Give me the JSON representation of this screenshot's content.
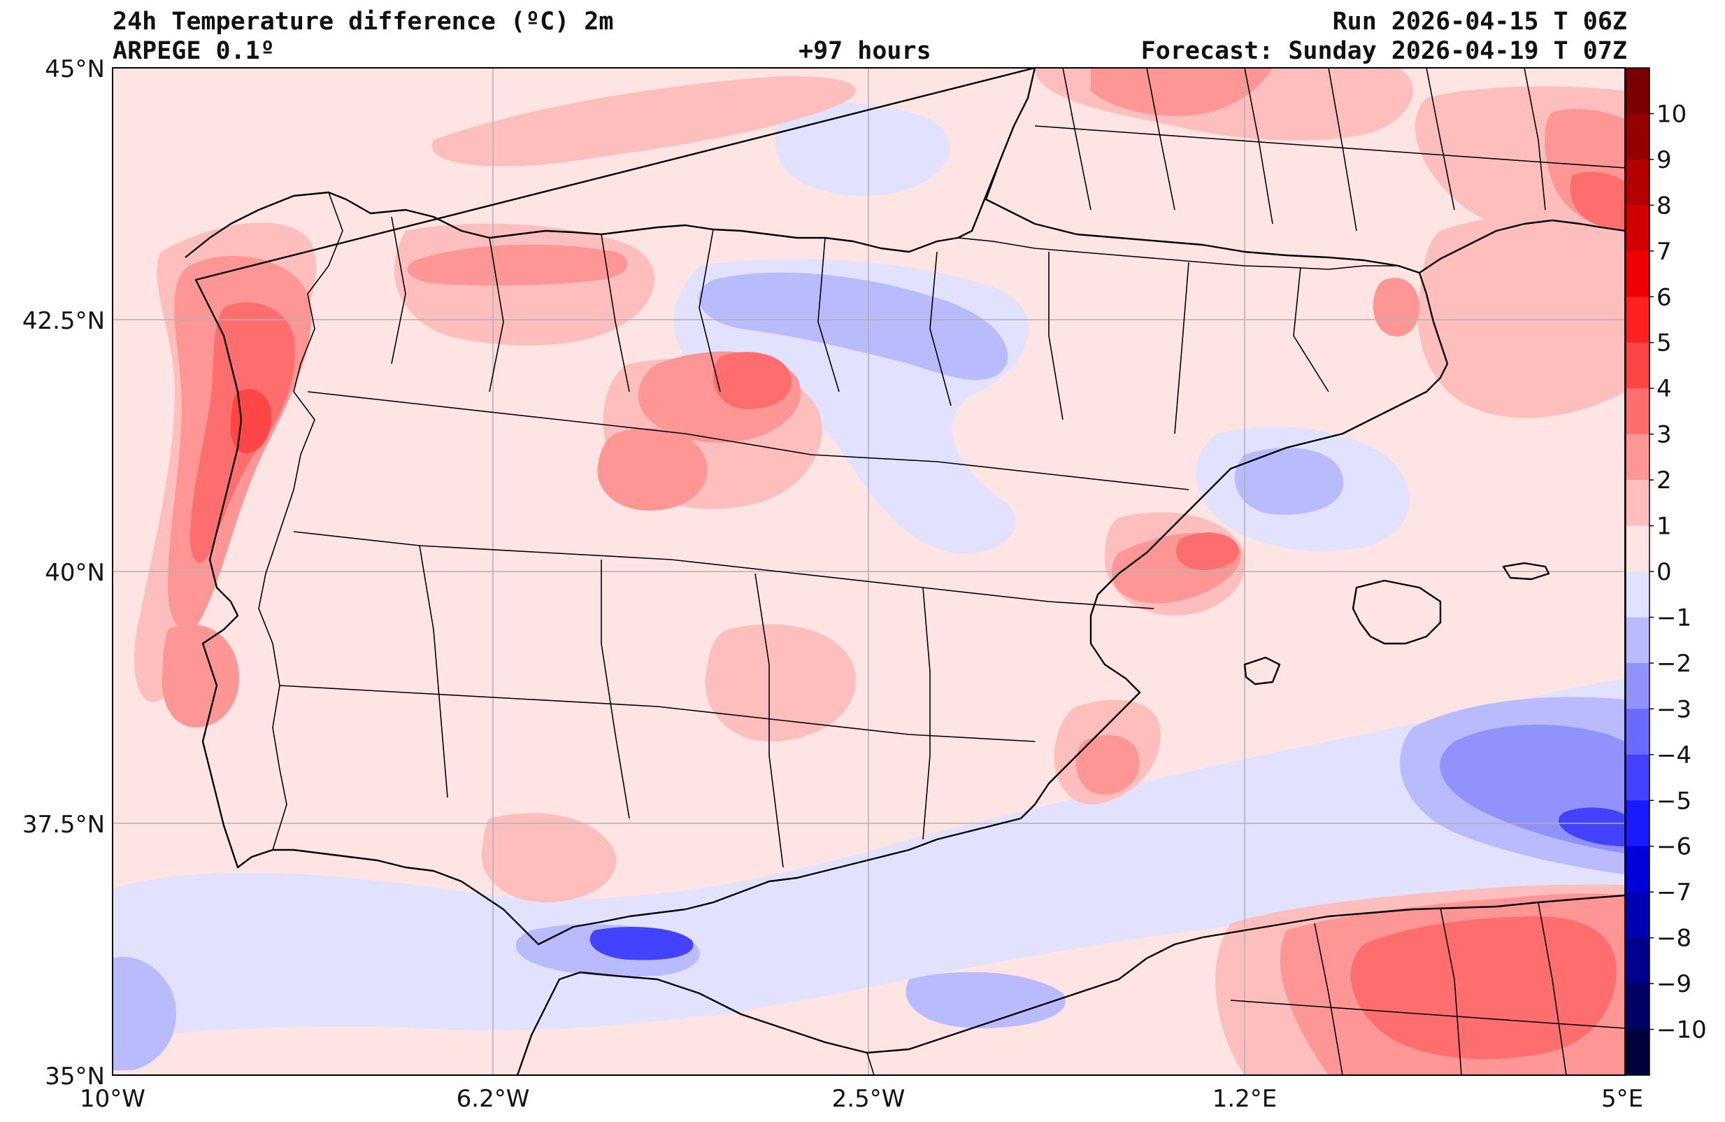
{
  "header": {
    "title": "24h Temperature difference (ºC) 2m",
    "model": "ARPEGE 0.1º",
    "lead_time": "+97 hours",
    "run": "Run 2026-04-15 T 06Z",
    "forecast": "Forecast: Sunday 2026-04-19 T 07Z"
  },
  "axes": {
    "lat_ticks": [
      "45°N",
      "42.5°N",
      "40°N",
      "37.5°N",
      "35°N"
    ],
    "lon_ticks": [
      "10°W",
      "6.2°W",
      "2.5°W",
      "1.2°E",
      "5°E"
    ]
  },
  "colorbar": {
    "labels": [
      "10",
      "9",
      "8",
      "7",
      "6",
      "5",
      "4",
      "3",
      "2",
      "1",
      "0",
      "−1",
      "−2",
      "−3",
      "−4",
      "−5",
      "−6",
      "−7",
      "−8",
      "−9",
      "−10"
    ],
    "colors": [
      "#7a0000",
      "#960000",
      "#b40000",
      "#d20000",
      "#f00000",
      "#ff2020",
      "#ff4646",
      "#ff6e6e",
      "#ff9696",
      "#ffbebe",
      "#ffe4e4",
      "#e2e2ff",
      "#babaff",
      "#9292ff",
      "#6a6aff",
      "#4242ff",
      "#1a1aff",
      "#0000dc",
      "#0000b4",
      "#00008c",
      "#000064",
      "#00003c"
    ]
  },
  "colors": {
    "base_warm": "#ffe4e4",
    "warm_1": "#ffbebe",
    "warm_2": "#ff9696",
    "warm_3": "#ff6e6e",
    "warm_4": "#ff4646",
    "cool_1": "#e2e2ff",
    "cool_2": "#babaff",
    "cool_3": "#9292ff",
    "cool_4": "#4242ff"
  },
  "map": {
    "regions": [
      "Iberian Peninsula",
      "Balearic Islands",
      "Southern France",
      "North Africa"
    ]
  }
}
